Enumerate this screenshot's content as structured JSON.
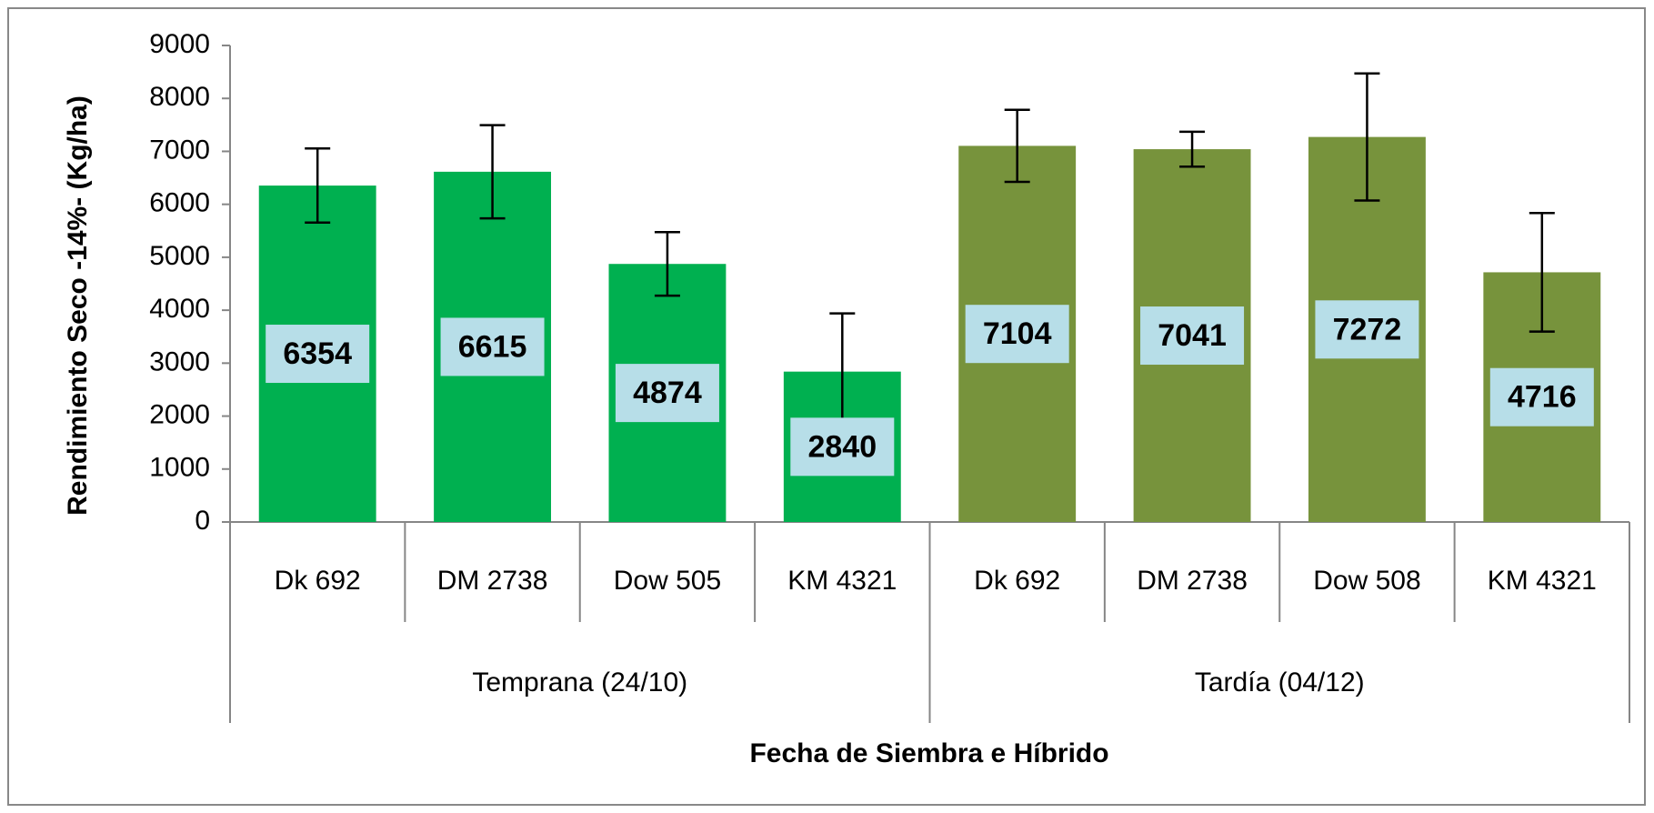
{
  "chart_data": {
    "type": "bar",
    "y_label": "Rendimiento Seco -14%- (Kg/ha)",
    "x_label": "Fecha de Siembra e Híbrido",
    "ylim": [
      0,
      9000
    ],
    "yticks": [
      0,
      1000,
      2000,
      3000,
      4000,
      5000,
      6000,
      7000,
      8000,
      9000
    ],
    "groups": [
      {
        "name": "Temprana (24/10)",
        "color": "#00b050",
        "categories": [
          "Dk 692",
          "DM 2738",
          "Dow 505",
          "KM 4321"
        ],
        "values": [
          6354,
          6615,
          4874,
          2840
        ],
        "errors": [
          700,
          880,
          600,
          1100
        ]
      },
      {
        "name": "Tardía (04/12)",
        "color": "#77933c",
        "categories": [
          "Dk 692",
          "DM 2738",
          "Dow 508",
          "KM 4321"
        ],
        "values": [
          7104,
          7041,
          7272,
          4716
        ],
        "errors": [
          680,
          330,
          1200,
          1120
        ]
      }
    ]
  }
}
